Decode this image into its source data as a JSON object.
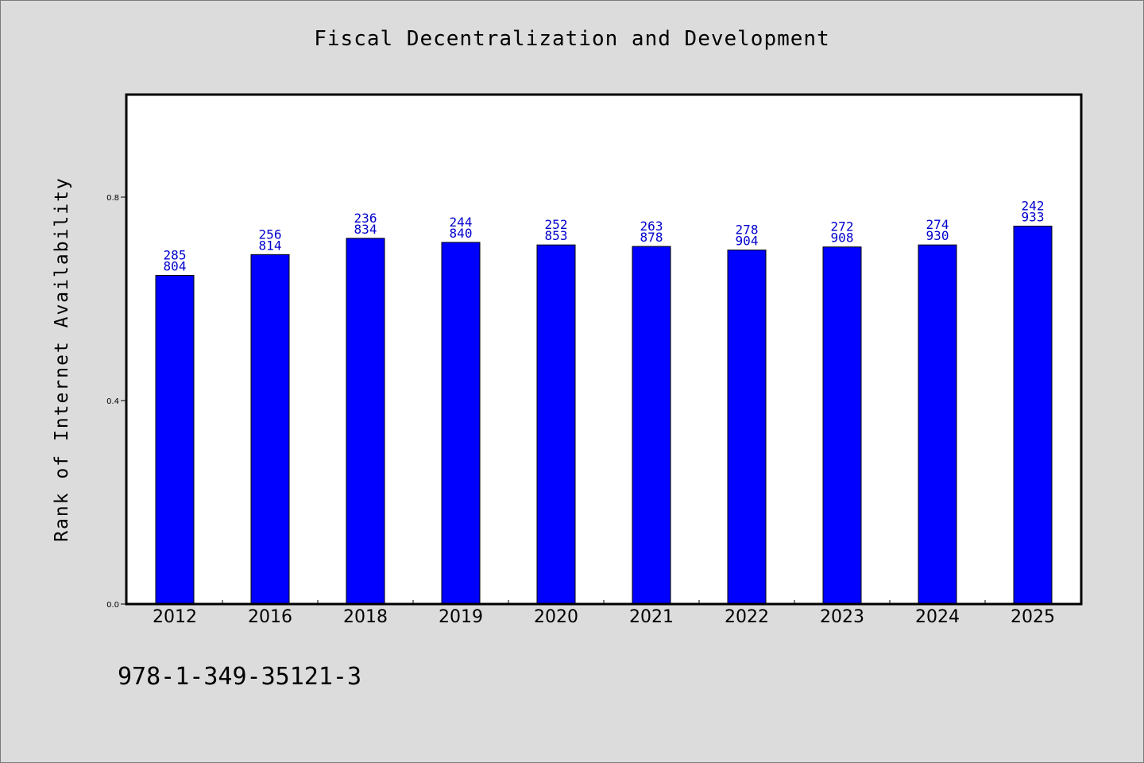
{
  "chart_data": {
    "type": "bar",
    "title": "Fiscal Decentralization and Development",
    "ylabel": "Rank of Internet Availability",
    "xlabel": "",
    "ylim": [
      0,
      1.0
    ],
    "yticks": [
      "0.0",
      "0.4",
      "0.8"
    ],
    "ytick_values": [
      0.0,
      0.4,
      0.8
    ],
    "categories": [
      "2012",
      "2016",
      "2018",
      "2019",
      "2020",
      "2021",
      "2022",
      "2023",
      "2024",
      "2025"
    ],
    "values": [
      0.646,
      0.687,
      0.719,
      0.711,
      0.706,
      0.703,
      0.696,
      0.702,
      0.706,
      0.743
    ],
    "labels_top": [
      "285",
      "256",
      "236",
      "244",
      "252",
      "263",
      "278",
      "272",
      "274",
      "242"
    ],
    "labels_bottom": [
      "804",
      "814",
      "834",
      "840",
      "853",
      "878",
      "904",
      "908",
      "930",
      "933"
    ],
    "bar_color": "#0000ff",
    "label_color": "#0000cc",
    "grid": false
  },
  "footer": {
    "isbn": "978-1-349-35121-3"
  },
  "colors": {
    "background": "#dcdcdc",
    "plot_background": "#ffffff"
  }
}
